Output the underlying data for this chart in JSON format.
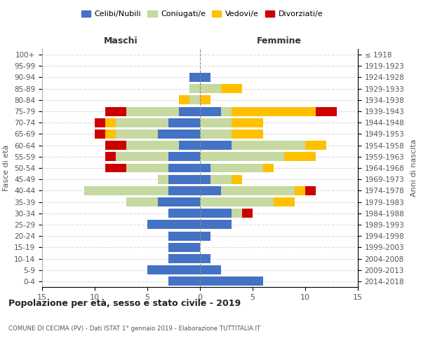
{
  "age_groups": [
    "100+",
    "95-99",
    "90-94",
    "85-89",
    "80-84",
    "75-79",
    "70-74",
    "65-69",
    "60-64",
    "55-59",
    "50-54",
    "45-49",
    "40-44",
    "35-39",
    "30-34",
    "25-29",
    "20-24",
    "15-19",
    "10-14",
    "5-9",
    "0-4"
  ],
  "birth_years": [
    "≤ 1918",
    "1919-1923",
    "1924-1928",
    "1929-1933",
    "1934-1938",
    "1939-1943",
    "1944-1948",
    "1949-1953",
    "1954-1958",
    "1959-1963",
    "1964-1968",
    "1969-1973",
    "1974-1978",
    "1979-1983",
    "1984-1988",
    "1989-1993",
    "1994-1998",
    "1999-2003",
    "2004-2008",
    "2009-2013",
    "2014-2018"
  ],
  "males": {
    "celibi": [
      0,
      0,
      1,
      0,
      0,
      2,
      3,
      4,
      2,
      3,
      3,
      3,
      3,
      4,
      3,
      5,
      3,
      3,
      3,
      5,
      3
    ],
    "coniugati": [
      0,
      0,
      0,
      1,
      1,
      5,
      5,
      4,
      5,
      5,
      4,
      1,
      8,
      3,
      0,
      0,
      0,
      0,
      0,
      0,
      0
    ],
    "vedovi": [
      0,
      0,
      0,
      0,
      1,
      0,
      1,
      1,
      0,
      0,
      0,
      0,
      0,
      0,
      0,
      0,
      0,
      0,
      0,
      0,
      0
    ],
    "divorziati": [
      0,
      0,
      0,
      0,
      0,
      2,
      1,
      1,
      2,
      1,
      2,
      0,
      0,
      0,
      0,
      0,
      0,
      0,
      0,
      0,
      0
    ]
  },
  "females": {
    "nubili": [
      0,
      0,
      1,
      0,
      0,
      2,
      0,
      0,
      3,
      0,
      1,
      1,
      2,
      0,
      3,
      3,
      1,
      0,
      1,
      2,
      6
    ],
    "coniugate": [
      0,
      0,
      0,
      2,
      0,
      1,
      3,
      3,
      7,
      8,
      5,
      2,
      7,
      7,
      1,
      0,
      0,
      0,
      0,
      0,
      0
    ],
    "vedove": [
      0,
      0,
      0,
      2,
      1,
      8,
      3,
      3,
      2,
      3,
      1,
      1,
      1,
      2,
      0,
      0,
      0,
      0,
      0,
      0,
      0
    ],
    "divorziate": [
      0,
      0,
      0,
      0,
      0,
      2,
      0,
      0,
      0,
      0,
      0,
      0,
      1,
      0,
      1,
      0,
      0,
      0,
      0,
      0,
      0
    ]
  },
  "colors": {
    "celibi": "#4472c4",
    "coniugati": "#c5d9a0",
    "vedovi": "#ffc000",
    "divorziati": "#cc0000"
  },
  "xlim": 15,
  "title": "Popolazione per età, sesso e stato civile - 2019",
  "subtitle": "COMUNE DI CECIMA (PV) - Dati ISTAT 1° gennaio 2019 - Elaborazione TUTTITALIA.IT",
  "xlabel_left": "Maschi",
  "xlabel_right": "Femmine",
  "ylabel_left": "Fasce di età",
  "ylabel_right": "Anni di nascita",
  "legend_labels": [
    "Celibi/Nubili",
    "Coniugati/e",
    "Vedovi/e",
    "Divorziati/e"
  ]
}
